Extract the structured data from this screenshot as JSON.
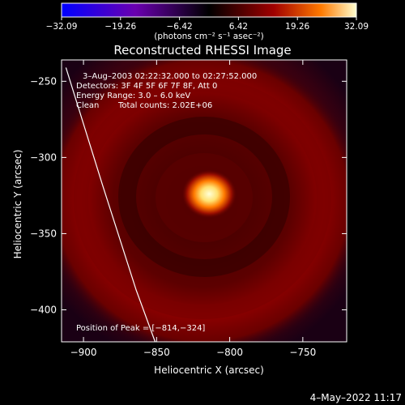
{
  "chart_data": {
    "type": "heatmap",
    "title": "Reconstructed RHESSI Image",
    "xlabel": "Heliocentric X (arcsec)",
    "ylabel": "Heliocentric Y (arcsec)",
    "xlim": [
      -915,
      -720
    ],
    "ylim": [
      -421,
      -236
    ],
    "x_ticks": [
      -900,
      -850,
      -800,
      -750
    ],
    "y_ticks": [
      -250,
      -300,
      -350,
      -400
    ],
    "x_tick_labels": [
      "−900",
      "−850",
      "−800",
      "−750"
    ],
    "y_tick_labels": [
      "−250",
      "−300",
      "−350",
      "−400"
    ],
    "colorbar": {
      "range": [
        -32.09,
        32.09
      ],
      "tick_labels": [
        "−32.09",
        "−19.26",
        "−6.42",
        "6.42",
        "19.26",
        "32.09"
      ],
      "units": "(photons cm⁻² s⁻¹ asec⁻²)",
      "colors": [
        "#0000ff",
        "#6a00b0",
        "#000000",
        "#8b0000",
        "#ff6a00",
        "#ffffd0"
      ]
    },
    "peak": {
      "x": -814,
      "y": -324
    },
    "annotations": {
      "time_range": "3–Aug–2003 02:22:32.000 to 02:27:52.000",
      "detectors": "Detectors: 3F 4F 5F 6F 7F 8F, Att 0",
      "energy": "Energy Range: 3.0 – 6.0 keV",
      "method": "Clean",
      "counts": "Total counts: 2.02E+06",
      "peak_label": "Position of Peak = [−814,−324]"
    },
    "limb_line": {
      "x": [
        -912,
        -887,
        -864,
        -851
      ],
      "y": [
        -241,
        -318,
        -387,
        -421
      ]
    },
    "grid": false
  },
  "footer": {
    "timestamp": "4–May–2022 11:17"
  }
}
